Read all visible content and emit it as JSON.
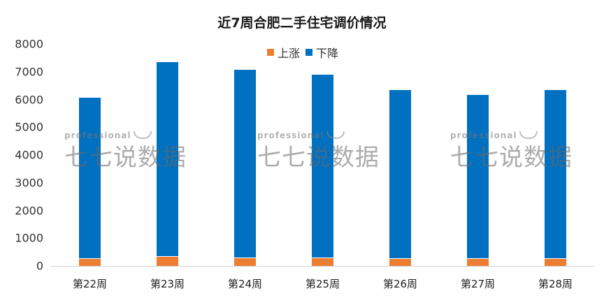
{
  "chart_data": {
    "type": "bar",
    "stacked": true,
    "title": "近7周合肥二手住宅调价情况",
    "categories": [
      "第22周",
      "第23周",
      "第24周",
      "第25周",
      "第26周",
      "第27周",
      "第28周"
    ],
    "series": [
      {
        "name": "上涨",
        "color": "#ed7d31",
        "values": [
          250,
          320,
          270,
          270,
          250,
          250,
          250
        ]
      },
      {
        "name": "下降",
        "color": "#0070c0",
        "values": [
          5810,
          7030,
          6800,
          6620,
          6090,
          5910,
          6090
        ]
      }
    ],
    "xlabel": "",
    "ylabel": "",
    "ylim": [
      0,
      8000
    ],
    "yticks": [
      "8000",
      "7000",
      "6000",
      "5000",
      "4000",
      "3000",
      "2000",
      "1000",
      "0"
    ],
    "grid": false,
    "legend_position": "top"
  },
  "legend": {
    "up": "上涨",
    "down": "下降"
  },
  "watermark": {
    "en": "professional",
    "cn": "七七说数据"
  }
}
